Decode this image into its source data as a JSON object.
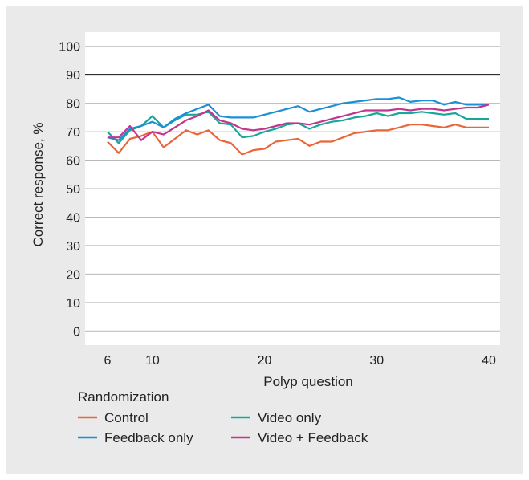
{
  "chart_data": {
    "type": "line",
    "title": "",
    "xlabel": "Polyp question",
    "ylabel": "Correct response, %",
    "xlim": [
      4,
      41
    ],
    "ylim": [
      -5,
      105
    ],
    "xticks": [
      6,
      10,
      20,
      30,
      40
    ],
    "yticks": [
      0,
      10,
      20,
      30,
      40,
      50,
      60,
      70,
      80,
      90,
      100
    ],
    "reference_line": 90,
    "grid": "horizontal",
    "legend": {
      "title": "Randomization",
      "placement": "bottom"
    },
    "series": [
      {
        "name": "Control",
        "color": "#e8663a",
        "x": [
          6,
          7,
          8,
          9,
          10,
          11,
          12,
          13,
          14,
          15,
          16,
          17,
          18,
          19,
          20,
          21,
          22,
          23,
          24,
          25,
          26,
          27,
          28,
          29,
          30,
          31,
          32,
          33,
          34,
          35,
          36,
          37,
          38,
          39,
          40
        ],
        "y": [
          66.5,
          62.5,
          67.5,
          68.5,
          70,
          64.5,
          67.5,
          70.5,
          69,
          70.5,
          67,
          66,
          62,
          63.5,
          64,
          66.5,
          67,
          67.5,
          65,
          66.5,
          66.5,
          68,
          69.5,
          70,
          70.5,
          70.5,
          71.5,
          72.5,
          72.5,
          72,
          71.5,
          72.5,
          71.5,
          71.5,
          71.5
        ]
      },
      {
        "name": "Video only",
        "color": "#1aa79a",
        "x": [
          6,
          7,
          8,
          9,
          10,
          11,
          12,
          13,
          14,
          15,
          16,
          17,
          18,
          19,
          20,
          21,
          22,
          23,
          24,
          25,
          26,
          27,
          28,
          29,
          30,
          31,
          32,
          33,
          34,
          35,
          36,
          37,
          38,
          39,
          40
        ],
        "y": [
          70,
          66,
          70.5,
          72,
          75.5,
          71.5,
          74,
          76,
          76,
          77,
          73,
          72.5,
          68,
          68.5,
          70,
          71,
          72.5,
          73,
          71,
          72.5,
          73.5,
          74,
          75,
          75.5,
          76.5,
          75.5,
          76.5,
          76.5,
          77,
          76.5,
          76,
          76.5,
          74.5,
          74.5,
          74.5
        ]
      },
      {
        "name": "Feedback only",
        "color": "#1c8fd6",
        "x": [
          6,
          7,
          8,
          9,
          10,
          11,
          12,
          13,
          14,
          15,
          16,
          17,
          18,
          19,
          20,
          21,
          22,
          23,
          24,
          25,
          26,
          27,
          28,
          29,
          30,
          31,
          32,
          33,
          34,
          35,
          36,
          37,
          38,
          39,
          40
        ],
        "y": [
          68,
          67,
          71,
          72,
          73.5,
          71.5,
          74.5,
          76.5,
          78,
          79.5,
          75.5,
          75,
          75,
          75,
          76,
          77,
          78,
          79,
          77,
          78,
          79,
          80,
          80.5,
          81,
          81.5,
          81.5,
          82,
          80.5,
          81,
          81,
          79.5,
          80.5,
          79.5,
          79.5,
          79.5
        ]
      },
      {
        "name": "Video + Feedback",
        "color": "#c2368e",
        "x": [
          6,
          7,
          8,
          9,
          10,
          11,
          12,
          13,
          14,
          15,
          16,
          17,
          18,
          19,
          20,
          21,
          22,
          23,
          24,
          25,
          26,
          27,
          28,
          29,
          30,
          31,
          32,
          33,
          34,
          35,
          36,
          37,
          38,
          39,
          40
        ],
        "y": [
          68,
          68,
          72,
          67,
          70,
          69,
          71.5,
          74,
          75.5,
          77.5,
          74,
          73,
          71,
          70.5,
          71,
          72,
          73,
          73,
          72.5,
          73.5,
          74.5,
          75.5,
          76.5,
          77.5,
          77.5,
          77.5,
          78,
          77.5,
          78,
          78,
          77.5,
          78,
          78.5,
          78.5,
          79.5
        ]
      }
    ]
  }
}
